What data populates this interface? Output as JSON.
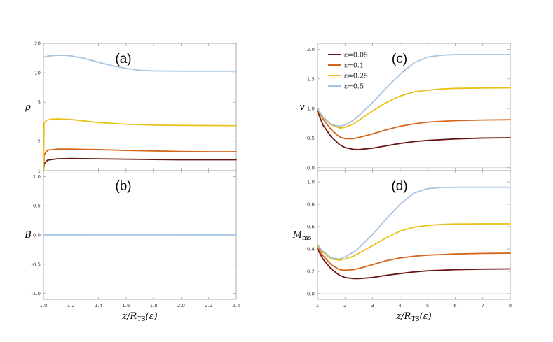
{
  "colors": {
    "eps_0_05": "#6b1414",
    "eps_0_1": "#d5651b",
    "eps_0_25": "#e8c11a",
    "eps_0_5": "#a8c4e0"
  },
  "chart_data": [
    {
      "panel": "(a)",
      "type": "line",
      "ylabel": "ρ",
      "xlabel": "",
      "yscale": "log",
      "xlim": [
        1.0,
        2.4
      ],
      "ylim": [
        1,
        20
      ],
      "xticks": [
        "1.0",
        "1.2",
        "1.4",
        "1.6",
        "1.8",
        "2.0",
        "2.2",
        "2.4"
      ],
      "yticks": [
        {
          "value": 1,
          "label": "1"
        },
        {
          "value": 2,
          "label": "2"
        },
        {
          "value": 5,
          "label": "5"
        },
        {
          "value": 10,
          "label": "10"
        },
        {
          "value": 20,
          "label": "20"
        }
      ],
      "series": [
        {
          "color": "eps_0_05",
          "x": [
            1.0,
            1.005,
            1.03,
            1.1,
            1.2,
            1.4,
            1.6,
            1.8,
            2.0,
            2.2,
            2.4
          ],
          "y": [
            1.0,
            1.18,
            1.28,
            1.32,
            1.33,
            1.32,
            1.31,
            1.3,
            1.29,
            1.29,
            1.29
          ]
        },
        {
          "color": "eps_0_1",
          "x": [
            1.0,
            1.005,
            1.03,
            1.1,
            1.2,
            1.4,
            1.6,
            1.8,
            2.0,
            2.2,
            2.4
          ],
          "y": [
            1.0,
            1.45,
            1.62,
            1.66,
            1.66,
            1.64,
            1.61,
            1.59,
            1.57,
            1.56,
            1.56
          ]
        },
        {
          "color": "eps_0_25",
          "x": [
            1.0,
            1.005,
            1.02,
            1.05,
            1.1,
            1.2,
            1.3,
            1.4,
            1.6,
            1.8,
            2.0,
            2.2,
            2.4
          ],
          "y": [
            1.0,
            3.05,
            3.25,
            3.35,
            3.38,
            3.33,
            3.22,
            3.1,
            2.98,
            2.92,
            2.9,
            2.89,
            2.88
          ]
        },
        {
          "color": "eps_0_5",
          "x": [
            1.0,
            1.02,
            1.05,
            1.1,
            1.15,
            1.2,
            1.3,
            1.4,
            1.5,
            1.6,
            1.7,
            1.8,
            2.0,
            2.2,
            2.4
          ],
          "y": [
            14.4,
            14.7,
            14.9,
            15.1,
            15.1,
            14.9,
            14.0,
            12.8,
            11.8,
            11.1,
            10.6,
            10.45,
            10.4,
            10.4,
            10.4
          ]
        }
      ]
    },
    {
      "panel": "(b)",
      "type": "line",
      "ylabel": "B",
      "xlabel": "z/R_TS(ε)",
      "xlim": [
        1.0,
        2.4
      ],
      "ylim": [
        -1.1,
        1.1
      ],
      "xticks": [
        "1.0",
        "1.2",
        "1.4",
        "1.6",
        "1.8",
        "2.0",
        "2.2",
        "2.4"
      ],
      "yticks": [
        {
          "value": -1.0,
          "label": "-1.0"
        },
        {
          "value": -0.5,
          "label": "-0.5"
        },
        {
          "value": 0.0,
          "label": "0.0"
        },
        {
          "value": 0.5,
          "label": "0.5"
        },
        {
          "value": 1.0,
          "label": "1.0"
        }
      ],
      "series": [
        {
          "color": "eps_0_5",
          "x": [
            1.0,
            2.4
          ],
          "y": [
            0.0,
            0.0
          ]
        }
      ]
    },
    {
      "panel": "(c)",
      "type": "line",
      "ylabel": "v",
      "xlabel": "",
      "xlim": [
        1,
        8
      ],
      "ylim": [
        -0.05,
        2.1
      ],
      "xticks": [
        "1",
        "2",
        "3",
        "4",
        "5",
        "6",
        "7",
        "8"
      ],
      "yticks": [
        {
          "value": 0.0,
          "label": "0.0"
        },
        {
          "value": 0.5,
          "label": "0.5"
        },
        {
          "value": 1.0,
          "label": "1.0"
        },
        {
          "value": 1.5,
          "label": "1.5"
        },
        {
          "value": 2.0,
          "label": "2.0"
        }
      ],
      "legend": {
        "position": "top-left",
        "entries": [
          {
            "label": "ε=0.05",
            "color": "eps_0_05"
          },
          {
            "label": "ε=0.1",
            "color": "eps_0_1"
          },
          {
            "label": "ε=0.25",
            "color": "eps_0_25"
          },
          {
            "label": "ε=0.5",
            "color": "eps_0_5"
          }
        ]
      },
      "series": [
        {
          "name": "ε=0.05",
          "color": "eps_0_05",
          "x": [
            1.0,
            1.2,
            1.5,
            1.8,
            2.0,
            2.3,
            2.5,
            3.0,
            3.5,
            4.0,
            4.5,
            5.0,
            6.0,
            7.0,
            8.0
          ],
          "y": [
            0.95,
            0.72,
            0.52,
            0.39,
            0.34,
            0.31,
            0.305,
            0.33,
            0.37,
            0.41,
            0.44,
            0.46,
            0.485,
            0.5,
            0.505
          ]
        },
        {
          "name": "ε=0.1",
          "color": "eps_0_1",
          "x": [
            1.0,
            1.2,
            1.5,
            1.8,
            2.0,
            2.3,
            2.5,
            3.0,
            3.5,
            4.0,
            4.5,
            5.0,
            6.0,
            7.0,
            8.0
          ],
          "y": [
            0.98,
            0.82,
            0.64,
            0.52,
            0.49,
            0.49,
            0.51,
            0.57,
            0.64,
            0.7,
            0.74,
            0.77,
            0.795,
            0.805,
            0.81
          ]
        },
        {
          "name": "ε=0.25",
          "color": "eps_0_25",
          "x": [
            1.0,
            1.2,
            1.5,
            1.8,
            2.0,
            2.3,
            2.5,
            3.0,
            3.5,
            4.0,
            4.5,
            5.0,
            5.5,
            6.0,
            7.0,
            8.0
          ],
          "y": [
            1.0,
            0.85,
            0.72,
            0.67,
            0.68,
            0.74,
            0.8,
            0.96,
            1.1,
            1.21,
            1.28,
            1.31,
            1.33,
            1.34,
            1.345,
            1.35
          ]
        },
        {
          "name": "ε=0.5",
          "color": "eps_0_5",
          "x": [
            1.0,
            1.2,
            1.5,
            1.8,
            2.0,
            2.3,
            2.5,
            3.0,
            3.5,
            4.0,
            4.5,
            5.0,
            5.5,
            6.0,
            7.0,
            8.0
          ],
          "y": [
            1.0,
            0.86,
            0.73,
            0.7,
            0.72,
            0.8,
            0.88,
            1.1,
            1.35,
            1.58,
            1.77,
            1.87,
            1.9,
            1.91,
            1.91,
            1.91
          ]
        }
      ]
    },
    {
      "panel": "(d)",
      "type": "line",
      "ylabel": "M_ms",
      "xlabel": "z/R_TS(ε)",
      "xlim": [
        1,
        8
      ],
      "ylim": [
        -0.05,
        1.1
      ],
      "xticks": [
        "1",
        "2",
        "3",
        "4",
        "5",
        "6",
        "7",
        "8"
      ],
      "yticks": [
        {
          "value": 0.0,
          "label": "0.0"
        },
        {
          "value": 0.2,
          "label": "0.2"
        },
        {
          "value": 0.4,
          "label": "0.4"
        },
        {
          "value": 0.6,
          "label": "0.6"
        },
        {
          "value": 0.8,
          "label": "0.8"
        },
        {
          "value": 1.0,
          "label": "1.0"
        }
      ],
      "series": [
        {
          "name": "ε=0.05",
          "color": "eps_0_05",
          "x": [
            1.0,
            1.2,
            1.5,
            1.8,
            2.0,
            2.3,
            2.5,
            3.0,
            3.5,
            4.0,
            4.5,
            5.0,
            6.0,
            7.0,
            8.0
          ],
          "y": [
            0.4,
            0.31,
            0.22,
            0.165,
            0.145,
            0.135,
            0.135,
            0.145,
            0.165,
            0.18,
            0.195,
            0.205,
            0.215,
            0.22,
            0.222
          ]
        },
        {
          "name": "ε=0.1",
          "color": "eps_0_1",
          "x": [
            1.0,
            1.2,
            1.5,
            1.8,
            2.0,
            2.3,
            2.5,
            3.0,
            3.5,
            4.0,
            4.5,
            5.0,
            6.0,
            7.0,
            8.0
          ],
          "y": [
            0.42,
            0.34,
            0.26,
            0.215,
            0.21,
            0.215,
            0.225,
            0.26,
            0.295,
            0.32,
            0.335,
            0.345,
            0.355,
            0.36,
            0.362
          ]
        },
        {
          "name": "ε=0.25",
          "color": "eps_0_25",
          "x": [
            1.0,
            1.2,
            1.5,
            1.8,
            2.0,
            2.3,
            2.5,
            3.0,
            3.5,
            4.0,
            4.5,
            5.0,
            5.5,
            6.0,
            7.0,
            8.0
          ],
          "y": [
            0.43,
            0.37,
            0.31,
            0.3,
            0.31,
            0.335,
            0.36,
            0.43,
            0.5,
            0.56,
            0.595,
            0.61,
            0.62,
            0.623,
            0.625,
            0.625
          ]
        },
        {
          "name": "ε=0.5",
          "color": "eps_0_5",
          "x": [
            1.0,
            1.2,
            1.5,
            1.8,
            2.0,
            2.3,
            2.5,
            3.0,
            3.5,
            4.0,
            4.5,
            5.0,
            5.5,
            6.0,
            7.0,
            8.0
          ],
          "y": [
            0.44,
            0.38,
            0.32,
            0.31,
            0.33,
            0.37,
            0.41,
            0.53,
            0.67,
            0.8,
            0.9,
            0.94,
            0.95,
            0.952,
            0.952,
            0.952
          ]
        }
      ]
    }
  ]
}
